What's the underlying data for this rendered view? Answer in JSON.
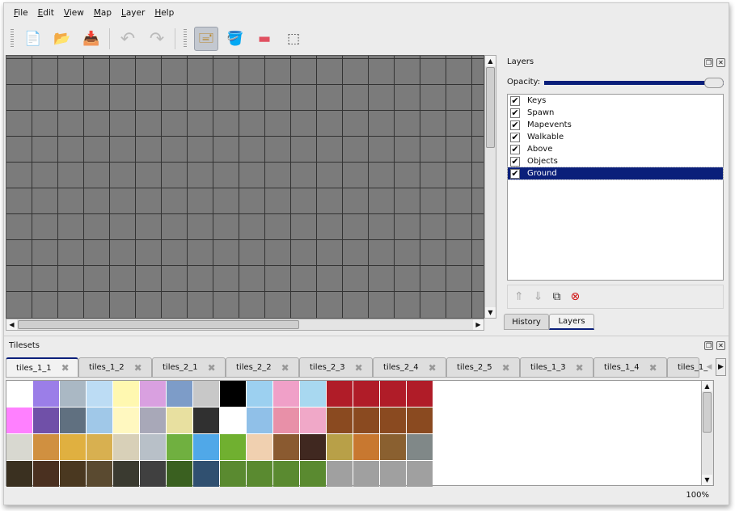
{
  "menu": [
    "File",
    "Edit",
    "View",
    "Map",
    "Layer",
    "Help"
  ],
  "toolbar": [
    {
      "name": "new-map",
      "icon": "📄",
      "active": false
    },
    {
      "name": "open",
      "icon": "📂",
      "active": false
    },
    {
      "name": "save",
      "icon": "📥",
      "active": false
    },
    {
      "name": "undo",
      "icon": "↶",
      "active": false
    },
    {
      "name": "redo",
      "icon": "↷",
      "active": false
    },
    {
      "name": "stamp-brush",
      "icon": "🖃",
      "active": true
    },
    {
      "name": "bucket-fill",
      "icon": "🪣",
      "active": false
    },
    {
      "name": "eraser",
      "icon": "▬",
      "active": false
    },
    {
      "name": "rectangle-select",
      "icon": "⬚",
      "active": false
    }
  ],
  "layers_panel": {
    "title": "Layers",
    "opacity_label": "Opacity:",
    "opacity": 1.0,
    "layers": [
      {
        "name": "Keys",
        "visible": true
      },
      {
        "name": "Spawn",
        "visible": true
      },
      {
        "name": "Mapevents",
        "visible": true
      },
      {
        "name": "Walkable",
        "visible": true
      },
      {
        "name": "Above",
        "visible": true
      },
      {
        "name": "Objects",
        "visible": true
      },
      {
        "name": "Ground",
        "visible": true,
        "selected": true
      }
    ],
    "tabs": [
      "History",
      "Layers"
    ],
    "active_tab": "Layers"
  },
  "tilesets": {
    "title": "Tilesets",
    "tabs": [
      "tiles_1_1",
      "tiles_1_2",
      "tiles_2_1",
      "tiles_2_2",
      "tiles_2_3",
      "tiles_2_4",
      "tiles_2_5",
      "tiles_1_3",
      "tiles_1_4",
      "tiles_1_"
    ],
    "active_tab": "tiles_1_1",
    "tile_colors": [
      [
        "#ffffff",
        "#9b7ee8",
        "#aab8c4",
        "#bcdcf4",
        "#fff8b0",
        "#d9a0e0",
        "#7d9cc8",
        "#c8c8c8",
        "#000000",
        "#9cd0f0",
        "#f0a0c8",
        "#a8d8f0",
        "#b01c28",
        "#b01c28",
        "#b01c28",
        "#b01c28"
      ],
      [
        "#ff80ff",
        "#7050a8",
        "#607080",
        "#a0c8e8",
        "#fff8c0",
        "#a8a8b8",
        "#e8e0a0",
        "#303030",
        "#ffffff",
        "#90c0e8",
        "#e890a8",
        "#f0a8c8",
        "#8a4a20",
        "#8a4a20",
        "#8a4a20",
        "#8a4a20"
      ],
      [
        "#d8d8d0",
        "#d09040",
        "#e0b040",
        "#d8b050",
        "#d8d0b8",
        "#b8c0c8",
        "#70b040",
        "#50a8e8",
        "#70b030",
        "#f0d0b0",
        "#8a5a30",
        "#402820",
        "#b8a048",
        "#c87830",
        "#8a6030",
        "#808888"
      ],
      [
        "#3a3020",
        "#4a3020",
        "#4a3820",
        "#5a4a30",
        "#3a3a30",
        "#404040",
        "#3a6020",
        "#305070",
        "#5a8a30",
        "#5a8a30",
        "#5a8a30",
        "#5a8a30",
        "#a0a0a0",
        "#a0a0a0",
        "#a0a0a0",
        "#a0a0a0"
      ]
    ]
  },
  "status": {
    "zoom": "100%"
  },
  "colors": {
    "selection": "#0a1f7a",
    "map_bg": "#7b7b7b"
  }
}
